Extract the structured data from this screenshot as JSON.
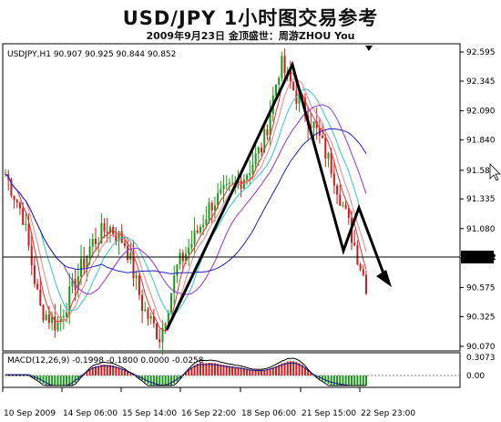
{
  "header": {
    "title": "USD/JPY 1小时图交易参考",
    "subtitle": "2009年9月23日  金顶盛世：周游ZHOU You"
  },
  "colors": {
    "bull_candle": "#1a9a1a",
    "bear_candle": "#d11a1a",
    "ma_red": "#e83030",
    "ma_pink": "#f08080",
    "ma_cyan": "#30c8c8",
    "ma_purple": "#9a30e0",
    "ma_blue": "#2020c0",
    "macd_signal": "#1a1a8a",
    "trend_arrow": "#000000",
    "background": "#ffffff"
  },
  "chart_data": [
    {
      "type": "candlestick",
      "info": "USDJPY,H1  90.907 90.925 90.844 90.852",
      "y_ticks": [
        "92.595",
        "92.345",
        "92.090",
        "91.840",
        "91.580",
        "91.335",
        "91.080",
        "90.825",
        "90.575",
        "90.325",
        "90.070"
      ],
      "current_price_label": "90.852",
      "current_price": 90.852,
      "ylim": [
        90.07,
        92.595
      ],
      "x_ticks": [
        "10 Sep 2009",
        "14 Sep 06:00",
        "15 Sep 14:00",
        "16 Sep 22:00",
        "18 Sep 06:00",
        "21 Sep 15:00",
        "22 Sep 23:00"
      ],
      "series": [
        {
          "kind": "price_path",
          "values": [
            91.55,
            91.2,
            90.4,
            90.25,
            90.6,
            90.95,
            91.1,
            90.95,
            90.4,
            90.15,
            90.75,
            91.0,
            91.3,
            91.4,
            91.55,
            91.8,
            92.5,
            92.2,
            91.95,
            91.6,
            91.1,
            90.6
          ]
        },
        {
          "kind": "trend_arrow",
          "points": [
            [
              183,
              362
            ],
            [
              321,
              71
            ],
            [
              377,
              275
            ],
            [
              394,
              228
            ],
            [
              424,
              308
            ]
          ]
        }
      ]
    },
    {
      "type": "macd",
      "info": "MACD(12,26,9) -0.1998 -0.1800 0.0000 -0.0258",
      "y_ticks": [
        "0.3073",
        "0.00"
      ],
      "ylim": [
        -0.25,
        0.3073
      ]
    }
  ]
}
